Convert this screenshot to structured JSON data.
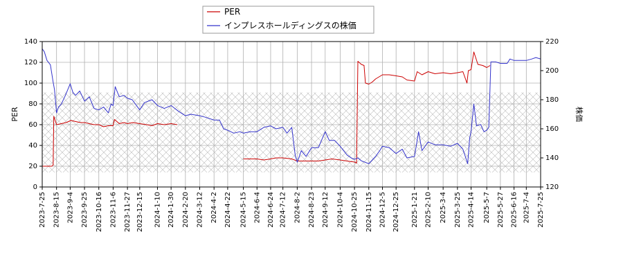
{
  "chart_data": {
    "type": "line",
    "title": "",
    "xlabel": "",
    "ylabel_left": "PER",
    "ylabel_right": "株価",
    "ylim_left": [
      0,
      140
    ],
    "ylim_right": [
      120,
      220
    ],
    "yticks_left": [
      0,
      20,
      40,
      60,
      80,
      100,
      120,
      140
    ],
    "yticks_right": [
      120,
      140,
      160,
      180,
      200,
      220
    ],
    "xlim": [
      "2023-07-25",
      "2025-07-25"
    ],
    "x_ticks": [
      "2023-7-25",
      "2023-8-15",
      "2023-9-4",
      "2023-9-25",
      "2023-10-16",
      "2023-11-6",
      "2023-11-27",
      "2023-12-15",
      "2024-1-10",
      "2024-1-30",
      "2024-2-20",
      "2024-3-12",
      "2024-4-2",
      "2024-4-22",
      "2024-5-15",
      "2024-6-4",
      "2024-6-24",
      "2024-7-12",
      "2024-8-2",
      "2024-8-23",
      "2024-9-12",
      "2024-10-4",
      "2024-10-25",
      "2024-11-15",
      "2024-12-5",
      "2024-12-25",
      "2025-1-21",
      "2025-2-10",
      "2025-3-4",
      "2025-3-25",
      "2025-4-14",
      "2025-5-7",
      "2025-5-27",
      "2025-6-16",
      "2025-7-4",
      "2025-7-25"
    ],
    "grid": true,
    "legend_position": "top-center",
    "hatched_band_right_axis": [
      130,
      185
    ],
    "series": [
      {
        "name": "PER",
        "axis": "left",
        "color": "#cc0000",
        "segments": [
          [
            [
              "2023-07-25",
              20
            ],
            [
              "2023-08-01",
              20
            ],
            [
              "2023-08-08",
              20
            ],
            [
              "2023-08-10",
              21
            ],
            [
              "2023-08-11",
              68
            ],
            [
              "2023-08-15",
              60
            ],
            [
              "2023-08-22",
              61
            ],
            [
              "2023-08-29",
              62
            ],
            [
              "2023-09-05",
              64
            ],
            [
              "2023-09-12",
              63
            ],
            [
              "2023-09-19",
              62
            ],
            [
              "2023-09-25",
              62
            ],
            [
              "2023-10-02",
              61
            ],
            [
              "2023-10-09",
              60
            ],
            [
              "2023-10-16",
              60
            ],
            [
              "2023-10-23",
              58
            ],
            [
              "2023-10-30",
              59
            ],
            [
              "2023-11-06",
              59
            ],
            [
              "2023-11-08",
              65
            ],
            [
              "2023-11-15",
              61
            ],
            [
              "2023-11-22",
              62
            ],
            [
              "2023-11-27",
              61
            ],
            [
              "2023-12-05",
              62
            ],
            [
              "2023-12-15",
              61
            ],
            [
              "2023-12-25",
              60
            ],
            [
              "2024-01-02",
              59
            ],
            [
              "2024-01-10",
              61
            ],
            [
              "2024-01-20",
              60
            ],
            [
              "2024-01-30",
              61
            ],
            [
              "2024-02-08",
              60
            ]
          ],
          [
            [
              "2024-05-15",
              27
            ],
            [
              "2024-05-25",
              27
            ],
            [
              "2024-06-04",
              27
            ],
            [
              "2024-06-14",
              26
            ],
            [
              "2024-06-24",
              27
            ],
            [
              "2024-07-02",
              28
            ],
            [
              "2024-07-12",
              28
            ],
            [
              "2024-07-25",
              27
            ],
            [
              "2024-08-02",
              25
            ],
            [
              "2024-08-12",
              25
            ],
            [
              "2024-08-23",
              25
            ],
            [
              "2024-09-02",
              25
            ],
            [
              "2024-09-12",
              26
            ],
            [
              "2024-09-22",
              27
            ],
            [
              "2024-10-04",
              26
            ],
            [
              "2024-10-14",
              25
            ],
            [
              "2024-10-25",
              24
            ],
            [
              "2024-10-28",
              23
            ],
            [
              "2024-10-30",
              121
            ],
            [
              "2024-11-04",
              118
            ],
            [
              "2024-11-08",
              117
            ],
            [
              "2024-11-10",
              100
            ],
            [
              "2024-11-15",
              99
            ],
            [
              "2024-11-20",
              101
            ],
            [
              "2024-11-25",
              104
            ],
            [
              "2024-12-05",
              108
            ],
            [
              "2024-12-15",
              108
            ],
            [
              "2024-12-25",
              107
            ],
            [
              "2025-01-03",
              106
            ],
            [
              "2025-01-10",
              103
            ],
            [
              "2025-01-21",
              102
            ],
            [
              "2025-01-25",
              111
            ],
            [
              "2025-02-01",
              108
            ],
            [
              "2025-02-10",
              111
            ],
            [
              "2025-02-20",
              109
            ],
            [
              "2025-03-04",
              110
            ],
            [
              "2025-03-15",
              109
            ],
            [
              "2025-03-25",
              110
            ],
            [
              "2025-04-02",
              111
            ],
            [
              "2025-04-08",
              100
            ],
            [
              "2025-04-10",
              112
            ],
            [
              "2025-04-14",
              113
            ],
            [
              "2025-04-18",
              130
            ],
            [
              "2025-04-24",
              118
            ],
            [
              "2025-05-01",
              117
            ],
            [
              "2025-05-07",
              115
            ],
            [
              "2025-05-12",
              117
            ]
          ]
        ]
      },
      {
        "name": "インプレスホールディングスの株価",
        "axis": "right",
        "color": "#3333cc",
        "segments": [
          [
            [
              "2023-07-25",
              215
            ],
            [
              "2023-07-28",
              213
            ],
            [
              "2023-08-01",
              207
            ],
            [
              "2023-08-06",
              204
            ],
            [
              "2023-08-10",
              192
            ],
            [
              "2023-08-12",
              187
            ],
            [
              "2023-08-15",
              171
            ],
            [
              "2023-08-18",
              175
            ],
            [
              "2023-08-22",
              177
            ],
            [
              "2023-08-28",
              183
            ],
            [
              "2023-09-04",
              191
            ],
            [
              "2023-09-08",
              185
            ],
            [
              "2023-09-12",
              183
            ],
            [
              "2023-09-18",
              186
            ],
            [
              "2023-09-25",
              179
            ],
            [
              "2023-10-02",
              182
            ],
            [
              "2023-10-09",
              174
            ],
            [
              "2023-10-16",
              173
            ],
            [
              "2023-10-23",
              175
            ],
            [
              "2023-10-30",
              171
            ],
            [
              "2023-11-03",
              177
            ],
            [
              "2023-11-06",
              176
            ],
            [
              "2023-11-09",
              189
            ],
            [
              "2023-11-15",
              182
            ],
            [
              "2023-11-22",
              183
            ],
            [
              "2023-11-27",
              181
            ],
            [
              "2023-12-04",
              180
            ],
            [
              "2023-12-15",
              173
            ],
            [
              "2023-12-22",
              178
            ],
            [
              "2024-01-02",
              180
            ],
            [
              "2024-01-10",
              176
            ],
            [
              "2024-01-20",
              174
            ],
            [
              "2024-01-30",
              176
            ],
            [
              "2024-02-10",
              172
            ],
            [
              "2024-02-20",
              169
            ],
            [
              "2024-02-28",
              170
            ],
            [
              "2024-03-12",
              169
            ],
            [
              "2024-03-20",
              168
            ],
            [
              "2024-04-02",
              166
            ],
            [
              "2024-04-10",
              166
            ],
            [
              "2024-04-16",
              160
            ],
            [
              "2024-04-22",
              159
            ],
            [
              "2024-05-01",
              157
            ],
            [
              "2024-05-10",
              158
            ],
            [
              "2024-05-15",
              157
            ],
            [
              "2024-05-25",
              158
            ],
            [
              "2024-06-04",
              158
            ],
            [
              "2024-06-14",
              161
            ],
            [
              "2024-06-24",
              162
            ],
            [
              "2024-07-02",
              160
            ],
            [
              "2024-07-12",
              161
            ],
            [
              "2024-07-18",
              157
            ],
            [
              "2024-07-25",
              161
            ],
            [
              "2024-07-30",
              142
            ],
            [
              "2024-08-02",
              137
            ],
            [
              "2024-08-08",
              145
            ],
            [
              "2024-08-15",
              141
            ],
            [
              "2024-08-23",
              147
            ],
            [
              "2024-09-02",
              147
            ],
            [
              "2024-09-12",
              158
            ],
            [
              "2024-09-18",
              152
            ],
            [
              "2024-09-26",
              152
            ],
            [
              "2024-10-04",
              148
            ],
            [
              "2024-10-14",
              142
            ],
            [
              "2024-10-20",
              140
            ],
            [
              "2024-10-25",
              139
            ],
            [
              "2024-10-30",
              140
            ],
            [
              "2024-11-04",
              138
            ],
            [
              "2024-11-15",
              136
            ],
            [
              "2024-11-25",
              141
            ],
            [
              "2024-12-01",
              145
            ],
            [
              "2024-12-05",
              148
            ],
            [
              "2024-12-15",
              147
            ],
            [
              "2024-12-25",
              143
            ],
            [
              "2025-01-03",
              146
            ],
            [
              "2025-01-10",
              140
            ],
            [
              "2025-01-21",
              141
            ],
            [
              "2025-01-27",
              158
            ],
            [
              "2025-02-01",
              145
            ],
            [
              "2025-02-10",
              151
            ],
            [
              "2025-02-20",
              149
            ],
            [
              "2025-03-04",
              149
            ],
            [
              "2025-03-15",
              148
            ],
            [
              "2025-03-25",
              150
            ],
            [
              "2025-04-02",
              146
            ],
            [
              "2025-04-09",
              136
            ],
            [
              "2025-04-12",
              154
            ],
            [
              "2025-04-14",
              158
            ],
            [
              "2025-04-18",
              177
            ],
            [
              "2025-04-22",
              162
            ],
            [
              "2025-04-28",
              163
            ],
            [
              "2025-05-03",
              158
            ],
            [
              "2025-05-07",
              159
            ],
            [
              "2025-05-10",
              161
            ],
            [
              "2025-05-13",
              206
            ],
            [
              "2025-05-20",
              206
            ],
            [
              "2025-05-27",
              205
            ],
            [
              "2025-06-06",
              205
            ],
            [
              "2025-06-10",
              208
            ],
            [
              "2025-06-16",
              207
            ],
            [
              "2025-06-26",
              207
            ],
            [
              "2025-07-04",
              207
            ],
            [
              "2025-07-12",
              208
            ],
            [
              "2025-07-18",
              209
            ],
            [
              "2025-07-25",
              208
            ]
          ]
        ]
      }
    ]
  }
}
